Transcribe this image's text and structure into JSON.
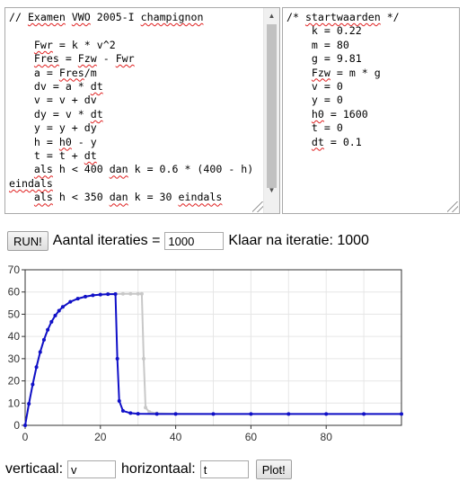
{
  "model_code": [
    "// Examen VWO 2005-I champignon",
    "",
    "    Fwr = k * v^2",
    "    Fres = Fzw - Fwr",
    "    a = Fres/m",
    "    dv = a * dt",
    "    v = v + dv",
    "    dy = v * dt",
    "    y = y + dy",
    "    h = h0 - y",
    "    t = t + dt",
    "    als h < 400 dan k = 0.6 * (400 - h) eindals",
    "    als h < 350 dan k = 30 eindals"
  ],
  "start_code": [
    "/* startwaarden */",
    "    k = 0.22",
    "    m = 80",
    "    g = 9.81",
    "    Fzw = m * g",
    "    v = 0",
    "    y = 0",
    "    h0 = 1600",
    "    t = 0",
    "    dt = 0.1"
  ],
  "controls": {
    "run_label": "RUN!",
    "iterations_label": "Aantal iteraties =",
    "iterations_value": "1000",
    "status_text": "Klaar na iteratie: 1000"
  },
  "plot_controls": {
    "vertical_label": "verticaal:",
    "vertical_value": "v",
    "horizontal_label": "horizontaal:",
    "horizontal_value": "t",
    "plot_label": "Plot!"
  },
  "chart_data": {
    "type": "line",
    "xlim": [
      0,
      100
    ],
    "ylim": [
      0,
      70
    ],
    "x_ticks": [
      0,
      20,
      40,
      60,
      80
    ],
    "y_ticks": [
      0,
      10,
      20,
      30,
      40,
      50,
      60,
      70
    ],
    "grid": true,
    "colors": {
      "current": "#1010c8",
      "previous": "#c8c8c8"
    },
    "series": [
      {
        "role": "previous",
        "x": [
          0,
          1,
          2,
          3,
          4,
          5,
          6,
          7,
          8,
          9,
          10,
          12,
          14,
          16,
          18,
          20,
          22,
          24,
          26,
          28,
          30,
          31,
          31.5,
          32,
          33,
          35,
          40,
          50,
          60,
          70,
          80,
          90,
          100
        ],
        "y": [
          0,
          9.7,
          18.4,
          26.2,
          33.0,
          38.5,
          43.0,
          46.6,
          49.4,
          51.6,
          53.3,
          55.6,
          57.0,
          57.9,
          58.5,
          58.8,
          59.0,
          59.1,
          59.2,
          59.2,
          59.2,
          59.2,
          30,
          8,
          6,
          5.4,
          5.2,
          5.1,
          5.1,
          5.1,
          5.1,
          5.1,
          5.1
        ]
      },
      {
        "role": "current",
        "x": [
          0,
          1,
          2,
          3,
          4,
          5,
          6,
          7,
          8,
          9,
          10,
          12,
          14,
          16,
          18,
          20,
          22,
          24,
          24.5,
          25,
          26,
          28,
          30,
          35,
          40,
          50,
          60,
          70,
          80,
          90,
          100
        ],
        "y": [
          0,
          9.7,
          18.4,
          26.2,
          33.0,
          38.5,
          43.0,
          46.6,
          49.4,
          51.6,
          53.3,
          55.6,
          57.0,
          57.9,
          58.5,
          58.8,
          59.0,
          59.1,
          30,
          11,
          6.5,
          5.5,
          5.2,
          5.1,
          5.1,
          5.1,
          5.1,
          5.1,
          5.1,
          5.1,
          5.1
        ]
      }
    ]
  }
}
